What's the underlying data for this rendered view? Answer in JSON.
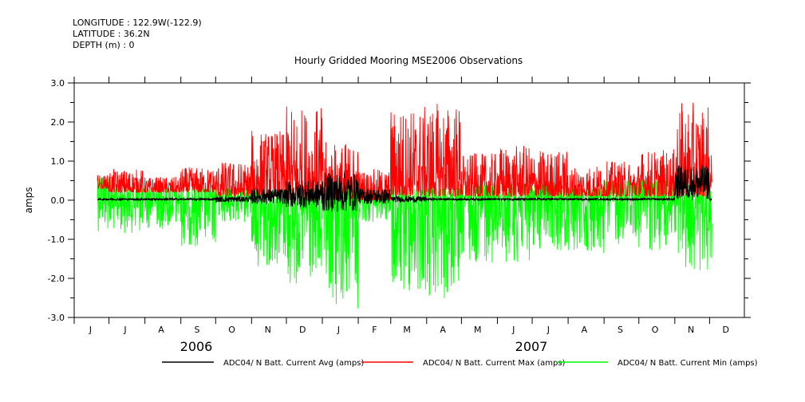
{
  "header": {
    "longitude": "LONGITUDE : 122.9W(-122.9)",
    "latitude": "LATITUDE : 36.2N",
    "depth": "DEPTH (m) : 0"
  },
  "chart_data": {
    "type": "line",
    "title": "Hourly Gridded Mooring MSE2006 Observations",
    "ylabel": "amps",
    "xlabel": "",
    "ylim": [
      -3.0,
      3.0
    ],
    "yticks": [
      "3.0",
      "2.0",
      "1.0",
      "0.0",
      "-1.0",
      "-2.0",
      "-3.0"
    ],
    "xlim": [
      "2006-06-01",
      "2007-12-31"
    ],
    "month_labels": [
      "J",
      "J",
      "A",
      "S",
      "O",
      "N",
      "D",
      "J",
      "F",
      "M",
      "A",
      "M",
      "J",
      "J",
      "A",
      "S",
      "O",
      "N",
      "D"
    ],
    "year_labels": [
      "2006",
      "2007"
    ],
    "data_range": [
      "2006-06-21",
      "2007-12-03"
    ],
    "months": [
      "2006-06",
      "2006-07",
      "2006-08",
      "2006-09",
      "2006-10",
      "2006-11",
      "2006-12",
      "2007-01",
      "2007-02",
      "2007-03",
      "2007-04",
      "2007-05",
      "2007-06",
      "2007-07",
      "2007-08",
      "2007-09",
      "2007-10",
      "2007-11",
      "2007-12"
    ],
    "series": [
      {
        "name": "ADC04/ N Batt. Current Avg (amps)",
        "color": "#000000",
        "peak_high": [
          0.05,
          0.05,
          0.05,
          0.05,
          0.1,
          0.3,
          0.5,
          0.7,
          0.3,
          0.1,
          0.05,
          0.05,
          0.05,
          0.05,
          0.05,
          0.05,
          0.05,
          0.9,
          0.05
        ],
        "peak_low": [
          0.0,
          0.0,
          0.0,
          0.0,
          -0.05,
          -0.1,
          -0.2,
          -0.3,
          -0.1,
          -0.05,
          0,
          0,
          0,
          0,
          0,
          0,
          0,
          0,
          0
        ]
      },
      {
        "name": "ADC04/ N Batt. Current Max (amps)",
        "color": "#ff0000",
        "peak_high": [
          0.65,
          0.8,
          0.6,
          0.85,
          1.0,
          1.8,
          2.4,
          1.5,
          0.8,
          2.4,
          2.5,
          1.2,
          1.4,
          1.3,
          0.9,
          1.0,
          1.3,
          2.5,
          1.2
        ],
        "peak_low": [
          0.3,
          0.2,
          0.2,
          0.2,
          0.1,
          0.1,
          0.0,
          0.0,
          0.0,
          0.1,
          0.1,
          0.1,
          0.1,
          0.1,
          0.1,
          0.1,
          0.1,
          0.1,
          0.2
        ]
      },
      {
        "name": "ADC04/ N Batt. Current Min (amps)",
        "color": "#00ff00",
        "peak_high": [
          0.6,
          0.3,
          0.3,
          0.3,
          0.3,
          0.3,
          0.3,
          0.3,
          0.2,
          0.3,
          0.3,
          0.4,
          0.4,
          0.4,
          0.3,
          0.5,
          0.5,
          0.4,
          0.3
        ],
        "peak_low": [
          -0.8,
          -0.85,
          -0.75,
          -1.2,
          -0.6,
          -1.7,
          -2.3,
          -2.8,
          -0.6,
          -2.5,
          -2.7,
          -1.6,
          -1.6,
          -1.3,
          -1.4,
          -1.2,
          -1.3,
          -1.8,
          -1.7
        ]
      }
    ]
  }
}
